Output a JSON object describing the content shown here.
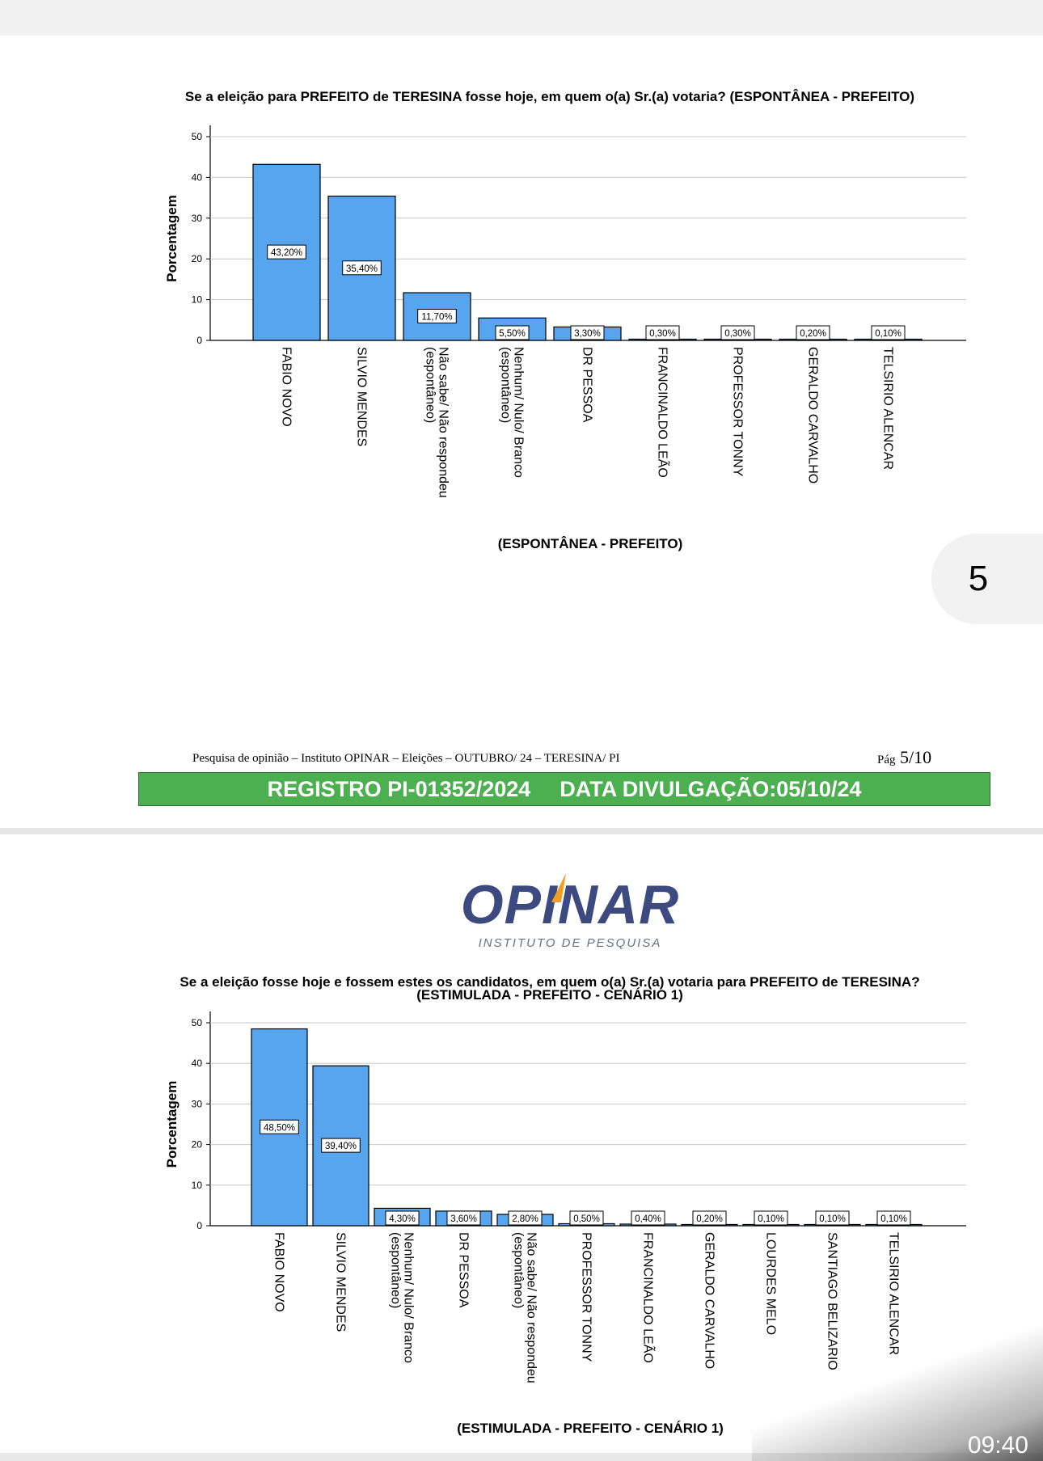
{
  "chart_data": [
    {
      "type": "bar",
      "title": "Se a eleição para PREFEITO de TERESINA fosse hoje, em quem o(a) Sr.(a) votaria? (ESPONTÂNEA - PREFEITO)",
      "ylabel": "Porcentagem",
      "xlabel": "(ESPONTÂNEA - PREFEITO)",
      "ylim": [
        0,
        50
      ],
      "yticks": [
        "0",
        "10",
        "20",
        "30",
        "40",
        "50"
      ],
      "categories": [
        "FABIO NOVO",
        "SILVIO MENDES",
        "Não sabe/ Não respondeu (espontâneo)",
        "Nenhum/ Nulo/ Branco (espontâneo)",
        "DR PESSOA",
        "FRANCINALDO LEÃO",
        "PROFESSOR TONNY",
        "GERALDO CARVALHO",
        "TELSIRIO ALENCAR"
      ],
      "values": [
        43.2,
        35.4,
        11.7,
        5.5,
        3.3,
        0.3,
        0.3,
        0.2,
        0.1
      ],
      "labels": [
        "43,20%",
        "35,40%",
        "11,70%",
        "5,50%",
        "3,30%",
        "0,30%",
        "0,30%",
        "0,20%",
        "0,10%"
      ],
      "grid": true,
      "bar_color": "#58a5ef"
    },
    {
      "type": "bar",
      "title": "Se a eleição fosse hoje e fossem estes os candidatos, em quem o(a) Sr.(a) votaria para PREFEITO de TERESINA? (ESTIMULADA - PREFEITO - CENÁRIO 1)",
      "ylabel": "Porcentagem",
      "xlabel": "(ESTIMULADA - PREFEITO - CENÁRIO 1)",
      "ylim": [
        0,
        50
      ],
      "yticks": [
        "0",
        "10",
        "20",
        "30",
        "40",
        "50"
      ],
      "categories": [
        "FABIO NOVO",
        "SILVIO MENDES",
        "Nenhum/ Nulo/ Branco (espontâneo)",
        "DR PESSOA",
        "Não sabe/ Não respondeu (espontâneo)",
        "PROFESSOR TONNY",
        "FRANCINALDO LEÃO",
        "GERALDO CARVALHO",
        "LOURDES MELO",
        "SANTIAGO BELIZARIO",
        "TELSIRIO ALENCAR"
      ],
      "values": [
        48.5,
        39.4,
        4.3,
        3.6,
        2.8,
        0.5,
        0.4,
        0.2,
        0.1,
        0.1,
        0.1
      ],
      "labels": [
        "48,50%",
        "39,40%",
        "4,30%",
        "3,60%",
        "2,80%",
        "0,50%",
        "0,40%",
        "0,20%",
        "0,10%",
        "0,10%",
        "0,10%"
      ],
      "grid": true,
      "bar_color": "#58a5ef"
    }
  ],
  "page_badge": "5",
  "footer": {
    "text": "Pesquisa de opinião – Instituto OPINAR – Eleições – OUTUBRO/ 24 – TERESINA/ PI",
    "page_prefix": "Pág",
    "page_number": "5/10"
  },
  "registro": {
    "left": "REGISTRO PI-01352/2024",
    "right": "DATA DIVULGAÇÃO:05/10/24",
    "bg_color": "#4caf50"
  },
  "logo": {
    "name": "OPINAR",
    "subtitle": "INSTITUTO DE PESQUISA",
    "color": "#3d4a80",
    "accent_color": "#f0a020"
  },
  "status": {
    "time": "09:40"
  }
}
